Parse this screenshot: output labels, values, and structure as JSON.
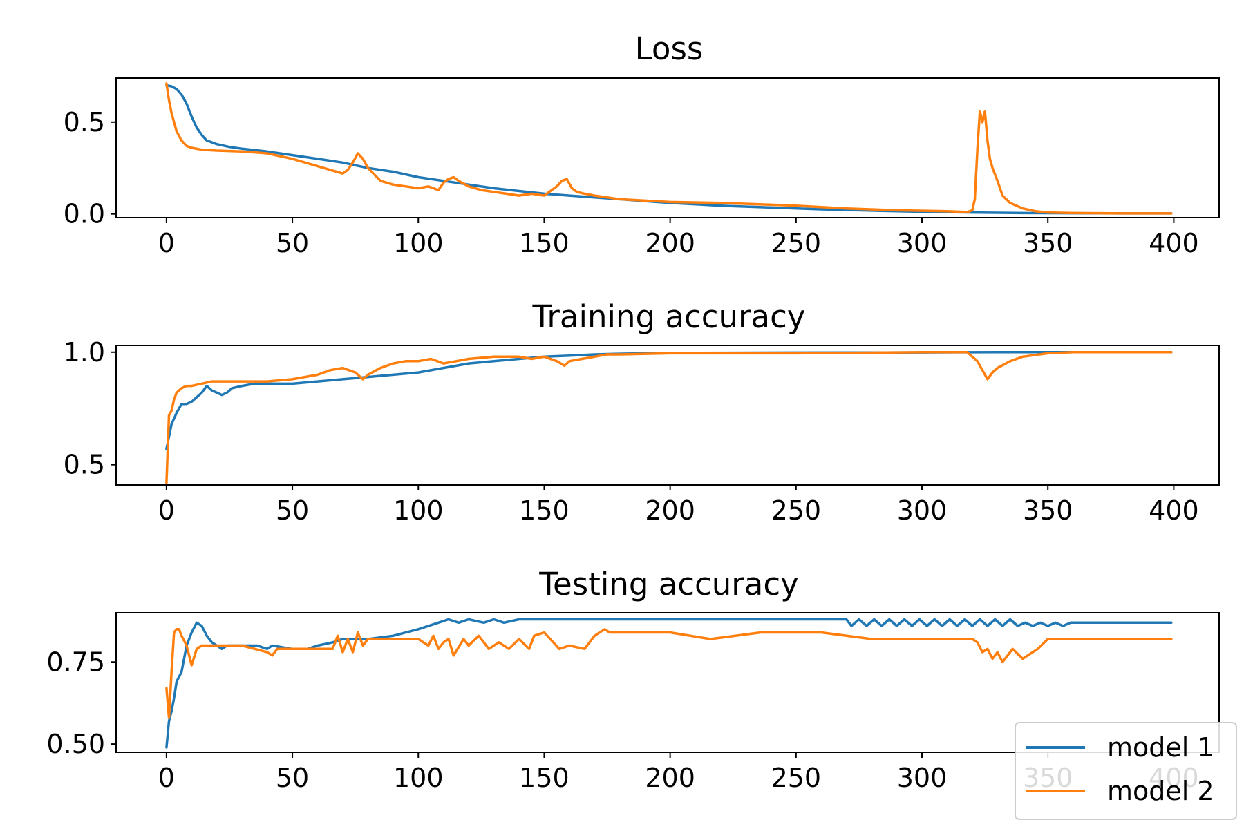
{
  "colors": {
    "model1": "#1f77b4",
    "model2": "#ff7f0e"
  },
  "legend": {
    "placement": "lower-right",
    "entries": [
      "model 1",
      "model 2"
    ]
  },
  "chart_data": [
    {
      "type": "line",
      "title": "Loss",
      "xlabel": "",
      "ylabel": "",
      "xlim": [
        -20,
        418
      ],
      "ylim": [
        -0.02,
        0.74
      ],
      "xticks": [
        0,
        50,
        100,
        150,
        200,
        250,
        300,
        350,
        400
      ],
      "yticks": [
        0.0,
        0.5
      ],
      "ytick_labels": [
        "0.0",
        "0.5"
      ],
      "grid": false,
      "series": [
        {
          "name": "model 1",
          "color": "#1f77b4",
          "x": [
            0,
            2,
            4,
            6,
            8,
            10,
            12,
            14,
            16,
            20,
            25,
            30,
            40,
            50,
            60,
            70,
            80,
            90,
            100,
            110,
            120,
            130,
            140,
            150,
            160,
            170,
            180,
            190,
            200,
            220,
            240,
            260,
            280,
            300,
            320,
            340,
            360,
            380,
            399
          ],
          "y": [
            0.7,
            0.695,
            0.68,
            0.65,
            0.6,
            0.53,
            0.47,
            0.43,
            0.4,
            0.38,
            0.365,
            0.355,
            0.34,
            0.32,
            0.3,
            0.28,
            0.25,
            0.23,
            0.2,
            0.18,
            0.16,
            0.14,
            0.125,
            0.11,
            0.1,
            0.09,
            0.08,
            0.07,
            0.06,
            0.045,
            0.035,
            0.025,
            0.018,
            0.012,
            0.008,
            0.005,
            0.004,
            0.003,
            0.003
          ]
        },
        {
          "name": "model 2",
          "color": "#ff7f0e",
          "x": [
            0,
            1,
            2,
            3,
            4,
            6,
            8,
            10,
            14,
            20,
            30,
            40,
            50,
            60,
            70,
            72,
            74,
            76,
            78,
            80,
            85,
            90,
            95,
            100,
            104,
            108,
            110,
            112,
            114,
            116,
            120,
            125,
            130,
            135,
            140,
            145,
            150,
            152,
            155,
            157,
            159,
            161,
            163,
            166,
            170,
            180,
            200,
            220,
            250,
            270,
            290,
            310,
            318,
            320,
            321,
            322,
            323,
            324,
            325,
            326,
            327,
            328,
            330,
            332,
            335,
            340,
            345,
            350,
            360,
            380,
            399
          ],
          "y": [
            0.71,
            0.62,
            0.55,
            0.5,
            0.45,
            0.4,
            0.37,
            0.36,
            0.35,
            0.345,
            0.34,
            0.33,
            0.3,
            0.26,
            0.22,
            0.24,
            0.28,
            0.33,
            0.3,
            0.25,
            0.18,
            0.16,
            0.15,
            0.14,
            0.15,
            0.13,
            0.17,
            0.19,
            0.2,
            0.18,
            0.15,
            0.13,
            0.12,
            0.11,
            0.1,
            0.11,
            0.1,
            0.12,
            0.15,
            0.18,
            0.19,
            0.14,
            0.12,
            0.11,
            0.1,
            0.08,
            0.065,
            0.06,
            0.045,
            0.03,
            0.02,
            0.015,
            0.01,
            0.02,
            0.08,
            0.35,
            0.56,
            0.5,
            0.56,
            0.4,
            0.3,
            0.25,
            0.18,
            0.1,
            0.06,
            0.03,
            0.015,
            0.008,
            0.005,
            0.003,
            0.003
          ]
        }
      ]
    },
    {
      "type": "line",
      "title": "Training accuracy",
      "xlabel": "",
      "ylabel": "",
      "xlim": [
        -20,
        418
      ],
      "ylim": [
        0.41,
        1.03
      ],
      "xticks": [
        0,
        50,
        100,
        150,
        200,
        250,
        300,
        350,
        400
      ],
      "yticks": [
        0.5,
        1.0
      ],
      "ytick_labels": [
        "0.5",
        "1.0"
      ],
      "grid": false,
      "series": [
        {
          "name": "model 1",
          "color": "#1f77b4",
          "x": [
            0,
            2,
            4,
            6,
            8,
            10,
            12,
            14,
            16,
            18,
            20,
            22,
            24,
            26,
            30,
            35,
            40,
            50,
            60,
            70,
            80,
            90,
            100,
            110,
            120,
            130,
            140,
            150,
            160,
            170,
            180,
            190,
            200,
            250,
            300,
            330,
            350,
            399
          ],
          "y": [
            0.57,
            0.68,
            0.73,
            0.77,
            0.77,
            0.78,
            0.8,
            0.82,
            0.85,
            0.83,
            0.82,
            0.81,
            0.82,
            0.84,
            0.85,
            0.86,
            0.86,
            0.86,
            0.87,
            0.88,
            0.89,
            0.9,
            0.91,
            0.93,
            0.95,
            0.96,
            0.97,
            0.98,
            0.985,
            0.99,
            0.993,
            0.995,
            0.997,
            0.998,
            0.999,
            1.0,
            1.0,
            1.0
          ]
        },
        {
          "name": "model 2",
          "color": "#ff7f0e",
          "x": [
            0,
            1,
            2,
            3,
            4,
            6,
            8,
            10,
            14,
            18,
            20,
            25,
            30,
            40,
            50,
            55,
            60,
            65,
            70,
            75,
            78,
            80,
            85,
            90,
            95,
            100,
            105,
            110,
            115,
            120,
            130,
            140,
            145,
            150,
            155,
            158,
            160,
            165,
            170,
            175,
            180,
            200,
            250,
            300,
            318,
            322,
            324,
            326,
            328,
            330,
            335,
            340,
            350,
            360,
            399
          ],
          "y": [
            0.42,
            0.72,
            0.74,
            0.79,
            0.82,
            0.84,
            0.85,
            0.85,
            0.86,
            0.87,
            0.87,
            0.87,
            0.87,
            0.87,
            0.88,
            0.89,
            0.9,
            0.92,
            0.93,
            0.91,
            0.88,
            0.9,
            0.93,
            0.95,
            0.96,
            0.96,
            0.97,
            0.95,
            0.96,
            0.97,
            0.98,
            0.98,
            0.97,
            0.98,
            0.96,
            0.94,
            0.96,
            0.97,
            0.98,
            0.99,
            0.99,
            0.995,
            0.995,
            1.0,
            1.0,
            0.96,
            0.92,
            0.88,
            0.91,
            0.93,
            0.96,
            0.98,
            0.995,
            1.0,
            1.0
          ]
        }
      ]
    },
    {
      "type": "line",
      "title": "Testing accuracy",
      "xlabel": "",
      "ylabel": "",
      "xlim": [
        -20,
        418
      ],
      "ylim": [
        0.475,
        0.9
      ],
      "xticks": [
        0,
        50,
        100,
        150,
        200,
        250,
        300,
        350,
        400
      ],
      "yticks": [
        0.5,
        0.75
      ],
      "ytick_labels": [
        "0.50",
        "0.75"
      ],
      "grid": false,
      "series": [
        {
          "name": "model 1",
          "color": "#1f77b4",
          "x": [
            0,
            1,
            2,
            3,
            4,
            6,
            8,
            10,
            12,
            14,
            16,
            18,
            20,
            22,
            24,
            30,
            36,
            40,
            42,
            50,
            56,
            60,
            66,
            70,
            80,
            90,
            100,
            108,
            112,
            116,
            120,
            126,
            130,
            134,
            140,
            160,
            200,
            240,
            270,
            272,
            275,
            278,
            281,
            284,
            287,
            290,
            293,
            296,
            299,
            302,
            305,
            308,
            311,
            314,
            317,
            320,
            323,
            326,
            329,
            332,
            335,
            338,
            341,
            344,
            347,
            350,
            353,
            356,
            359,
            362,
            399
          ],
          "y": [
            0.49,
            0.57,
            0.6,
            0.64,
            0.69,
            0.72,
            0.8,
            0.84,
            0.87,
            0.86,
            0.83,
            0.81,
            0.8,
            0.79,
            0.8,
            0.8,
            0.8,
            0.79,
            0.8,
            0.79,
            0.79,
            0.8,
            0.81,
            0.82,
            0.82,
            0.83,
            0.85,
            0.87,
            0.88,
            0.87,
            0.88,
            0.87,
            0.88,
            0.87,
            0.88,
            0.88,
            0.88,
            0.88,
            0.88,
            0.86,
            0.88,
            0.86,
            0.88,
            0.86,
            0.88,
            0.86,
            0.88,
            0.86,
            0.88,
            0.86,
            0.88,
            0.86,
            0.88,
            0.86,
            0.88,
            0.86,
            0.88,
            0.86,
            0.88,
            0.86,
            0.88,
            0.86,
            0.87,
            0.86,
            0.87,
            0.86,
            0.87,
            0.86,
            0.87,
            0.87,
            0.87
          ]
        },
        {
          "name": "model 2",
          "color": "#ff7f0e",
          "x": [
            0,
            1,
            2,
            3,
            4,
            5,
            6,
            8,
            10,
            12,
            14,
            18,
            22,
            30,
            40,
            42,
            44,
            50,
            60,
            66,
            68,
            70,
            72,
            74,
            76,
            78,
            80,
            84,
            90,
            100,
            104,
            106,
            108,
            110,
            112,
            114,
            118,
            120,
            124,
            128,
            132,
            136,
            140,
            144,
            146,
            150,
            156,
            160,
            166,
            170,
            174,
            176,
            180,
            190,
            200,
            216,
            236,
            260,
            280,
            300,
            320,
            322,
            324,
            326,
            328,
            330,
            332,
            334,
            336,
            340,
            346,
            350,
            360,
            399
          ],
          "y": [
            0.67,
            0.58,
            0.72,
            0.84,
            0.85,
            0.85,
            0.83,
            0.8,
            0.74,
            0.79,
            0.8,
            0.8,
            0.8,
            0.8,
            0.78,
            0.77,
            0.79,
            0.79,
            0.79,
            0.79,
            0.83,
            0.78,
            0.82,
            0.78,
            0.84,
            0.8,
            0.82,
            0.82,
            0.82,
            0.82,
            0.8,
            0.83,
            0.79,
            0.81,
            0.82,
            0.77,
            0.82,
            0.8,
            0.83,
            0.79,
            0.81,
            0.79,
            0.82,
            0.79,
            0.83,
            0.84,
            0.79,
            0.8,
            0.79,
            0.83,
            0.85,
            0.84,
            0.84,
            0.84,
            0.84,
            0.82,
            0.84,
            0.84,
            0.82,
            0.82,
            0.82,
            0.81,
            0.78,
            0.79,
            0.76,
            0.78,
            0.75,
            0.77,
            0.79,
            0.76,
            0.79,
            0.82,
            0.82,
            0.82
          ]
        }
      ]
    }
  ]
}
